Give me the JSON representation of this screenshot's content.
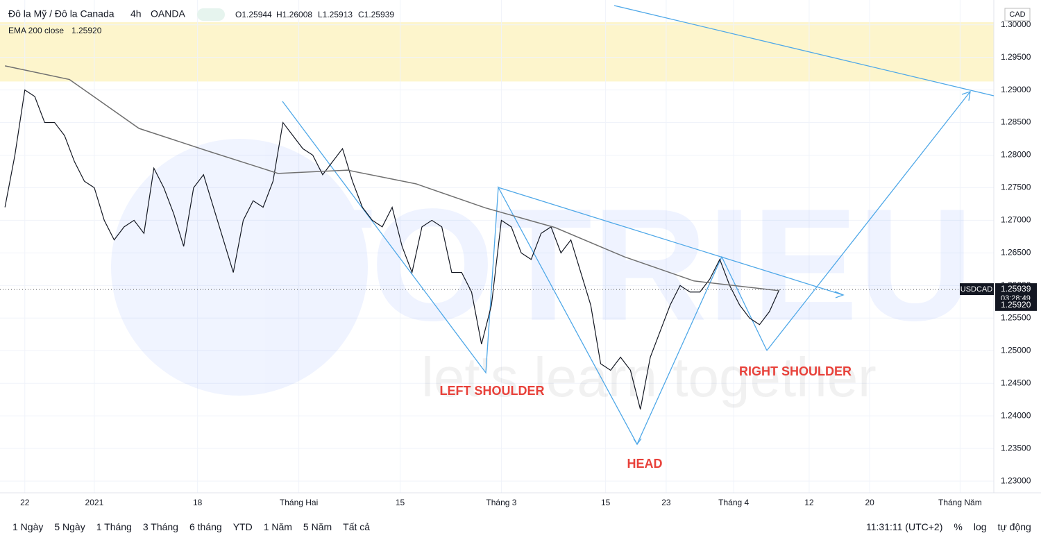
{
  "chart_data": {
    "type": "line",
    "symbol": "Đô la Mỹ / Đô la Canada",
    "interval": "4h",
    "source": "OANDA",
    "ohlc": [
      "O1.25944",
      "H1.26008",
      "L1.25913",
      "C1.25939"
    ],
    "currency": "CAD",
    "xlim": [
      -2.5,
      97.6
    ],
    "xticks": [
      {
        "value": 0,
        "label": "22"
      },
      {
        "value": 7,
        "label": "2021"
      },
      {
        "value": 17.4,
        "label": "18"
      },
      {
        "value": 27.6,
        "label": "Tháng Hai"
      },
      {
        "value": 37.8,
        "label": "15"
      },
      {
        "value": 48,
        "label": "Tháng 3"
      },
      {
        "value": 58.5,
        "label": "15"
      },
      {
        "value": 64.6,
        "label": "23"
      },
      {
        "value": 71.4,
        "label": "Tháng 4"
      },
      {
        "value": 79,
        "label": "12"
      },
      {
        "value": 85.1,
        "label": "20"
      },
      {
        "value": 94.2,
        "label": "Tháng Năm"
      }
    ],
    "ylim": [
      1.2282,
      1.3038
    ],
    "yticks": [
      {
        "value": 1.3,
        "label": "1.30000"
      },
      {
        "value": 1.295,
        "label": "1.29500"
      },
      {
        "value": 1.29,
        "label": "1.29000"
      },
      {
        "value": 1.285,
        "label": "1.28500"
      },
      {
        "value": 1.28,
        "label": "1.28000"
      },
      {
        "value": 1.275,
        "label": "1.27500"
      },
      {
        "value": 1.27,
        "label": "1.27000"
      },
      {
        "value": 1.265,
        "label": "1.26500"
      },
      {
        "value": 1.26,
        "label": "1.26000"
      },
      {
        "value": 1.255,
        "label": "1.25500"
      },
      {
        "value": 1.25,
        "label": "1.25000"
      },
      {
        "value": 1.245,
        "label": "1.24500"
      },
      {
        "value": 1.24,
        "label": "1.24000"
      },
      {
        "value": 1.235,
        "label": "1.23500"
      },
      {
        "value": 1.23,
        "label": "1.23000"
      }
    ],
    "zone": {
      "from": 1.2913,
      "to": 1.3004,
      "color": "#fdf5cc"
    },
    "series": [
      {
        "name": "USDCAD",
        "color": "#131722",
        "x": [
          -2,
          -1,
          0,
          1,
          2,
          3,
          4,
          5,
          6,
          7,
          8,
          9,
          10,
          11,
          12,
          13,
          14,
          15,
          16,
          17,
          18,
          19,
          20,
          21,
          22,
          23,
          24,
          25,
          26,
          27,
          28,
          29,
          30,
          31,
          32,
          33,
          34,
          35,
          36,
          37,
          38,
          39,
          40,
          41,
          42,
          43,
          44,
          45,
          46,
          47,
          48,
          49,
          50,
          51,
          52,
          53,
          54,
          55,
          56,
          57,
          58,
          59,
          60,
          61,
          62,
          63,
          64,
          65,
          66,
          67,
          68,
          69,
          70,
          71,
          72,
          73,
          74,
          75,
          76
        ],
        "values": [
          1.272,
          1.28,
          1.29,
          1.289,
          1.285,
          1.285,
          1.283,
          1.279,
          1.276,
          1.275,
          1.27,
          1.267,
          1.269,
          1.27,
          1.268,
          1.278,
          1.275,
          1.271,
          1.266,
          1.275,
          1.277,
          1.272,
          1.267,
          1.262,
          1.27,
          1.273,
          1.272,
          1.276,
          1.285,
          1.283,
          1.281,
          1.28,
          1.277,
          1.279,
          1.281,
          1.276,
          1.272,
          1.27,
          1.269,
          1.272,
          1.266,
          1.262,
          1.269,
          1.27,
          1.269,
          1.262,
          1.262,
          1.259,
          1.251,
          1.257,
          1.27,
          1.269,
          1.265,
          1.264,
          1.268,
          1.269,
          1.265,
          1.267,
          1.262,
          1.257,
          1.248,
          1.247,
          1.249,
          1.247,
          1.241,
          1.249,
          1.253,
          1.257,
          1.26,
          1.259,
          1.259,
          1.261,
          1.264,
          1.26,
          1.257,
          1.255,
          1.254,
          1.256,
          1.25939
        ]
      },
      {
        "name": "EMA 200 close",
        "color": "#707070",
        "x": [
          -2,
          4.5,
          11.5,
          18.5,
          25.5,
          32.5,
          39.4,
          46.4,
          53.4,
          60.4,
          67.4,
          76
        ],
        "values": [
          1.2937,
          1.2916,
          1.2841,
          1.2806,
          1.2772,
          1.2777,
          1.2756,
          1.2719,
          1.2689,
          1.2644,
          1.2607,
          1.2592
        ]
      }
    ],
    "legend_value": {
      "value": 1.2592,
      "label": "1.25920"
    },
    "last_price": 1.25939,
    "countdown": "03:28:49",
    "annotations": [
      "LEFT SHOULDER",
      "HEAD",
      "RIGHT SHOULDER"
    ],
    "watermark": [
      "TOTRIEU",
      "let's learn together"
    ],
    "toolbar": [
      "1 Ngày",
      "5 Ngày",
      "1 Tháng",
      "3 Tháng",
      "6 tháng",
      "YTD",
      "1 Năm",
      "5 Năm",
      "Tất cả"
    ],
    "clock": "11:31:11 (UTC+2)",
    "options": [
      "%",
      "log",
      "tự động"
    ]
  }
}
